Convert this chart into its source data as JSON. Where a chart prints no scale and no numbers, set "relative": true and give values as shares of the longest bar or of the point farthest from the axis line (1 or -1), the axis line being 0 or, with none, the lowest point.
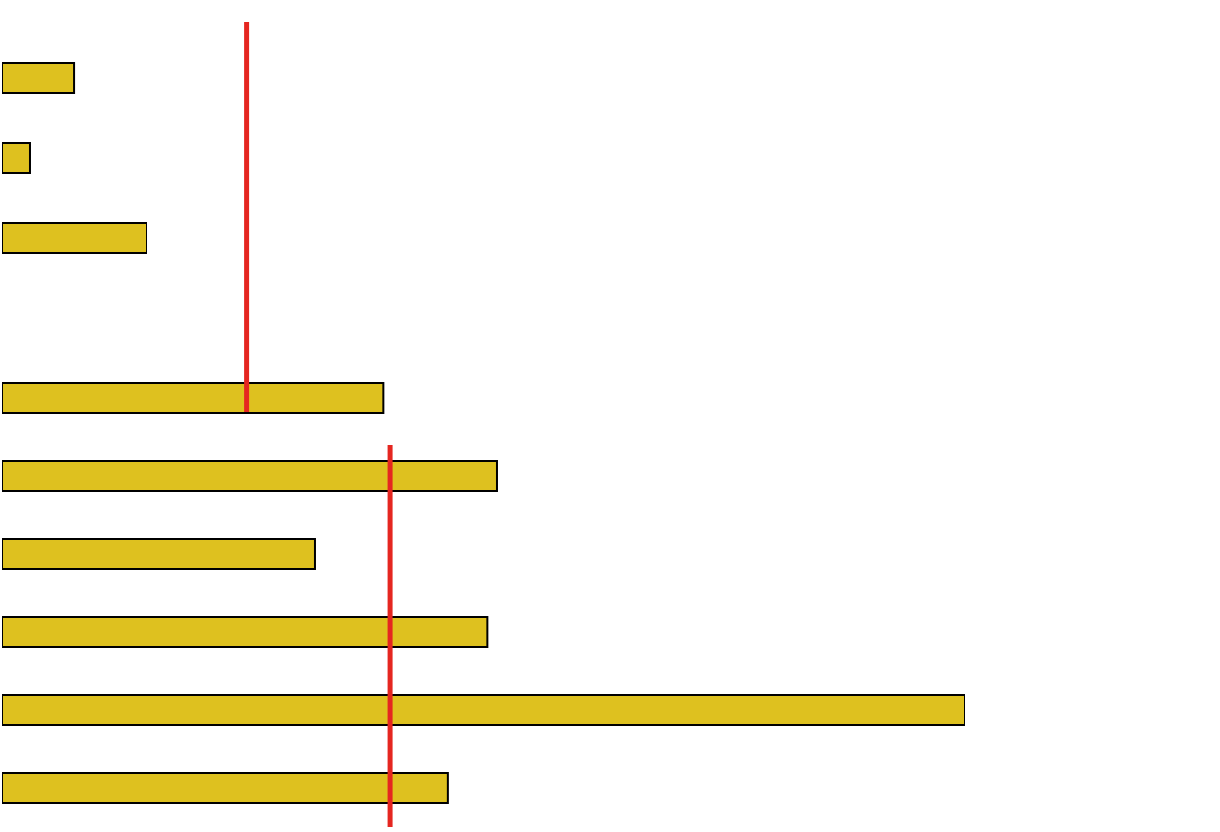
{
  "chart_data": [
    {
      "type": "bar",
      "orientation": "horizontal",
      "relative": true,
      "categories": [
        null,
        null,
        null
      ],
      "values": [
        0.497,
        0.193,
        1
      ],
      "color": "#dec11f"
    },
    {
      "type": "bar",
      "orientation": "horizontal",
      "relative": true,
      "categories": [
        null,
        null,
        null,
        null,
        null,
        null
      ],
      "values": [
        0.396,
        0.514,
        0.325,
        0.504,
        1,
        0.463
      ],
      "color": "#dec11f",
      "ref_lines": [
        {
          "axis": "x",
          "value": 0.254,
          "color": "#e52620"
        },
        {
          "axis": "x",
          "value": 0.403,
          "color": "#e52620"
        }
      ]
    }
  ]
}
